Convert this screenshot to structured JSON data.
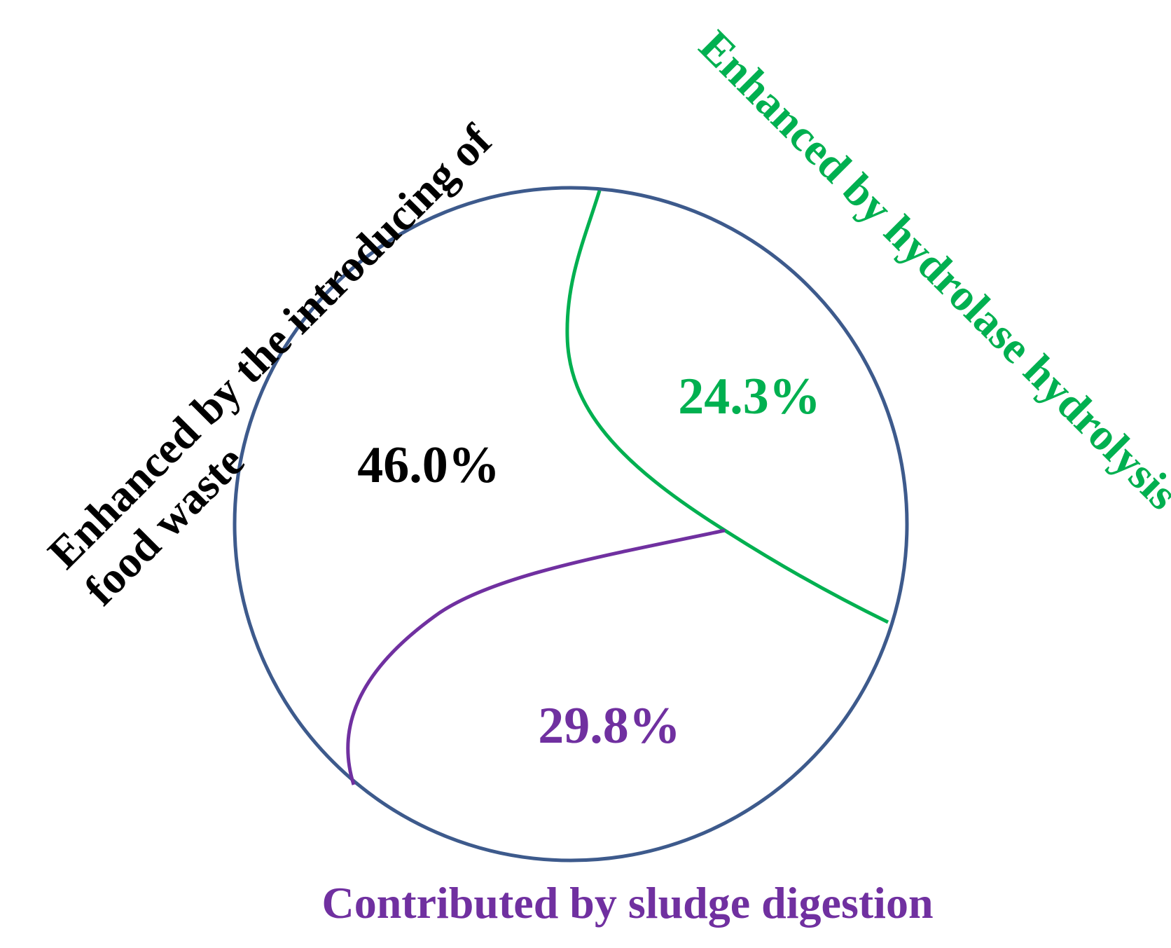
{
  "chart_data": {
    "type": "pie",
    "categories": [
      "Enhanced by the introducing of food waste",
      "Enhanced by hydrolase hydrolysis",
      "Contributed by sludge digestion"
    ],
    "values": [
      46.0,
      24.3,
      29.8
    ],
    "data_labels": [
      "46.0%",
      "24.3%",
      "29.8%"
    ],
    "category_labels": {
      "food_waste_line1": "Enhanced by the introducing of",
      "food_waste_line2": "food waste",
      "hydrolysis": "Enhanced by hydrolase hydrolysis",
      "sludge": "Contributed by sludge digestion"
    },
    "colors": {
      "outline": "#3d5a8c",
      "food_waste": "#000000",
      "hydrolysis": "#00b050",
      "sludge": "#7030a0"
    },
    "legend": "none",
    "grid": false
  }
}
